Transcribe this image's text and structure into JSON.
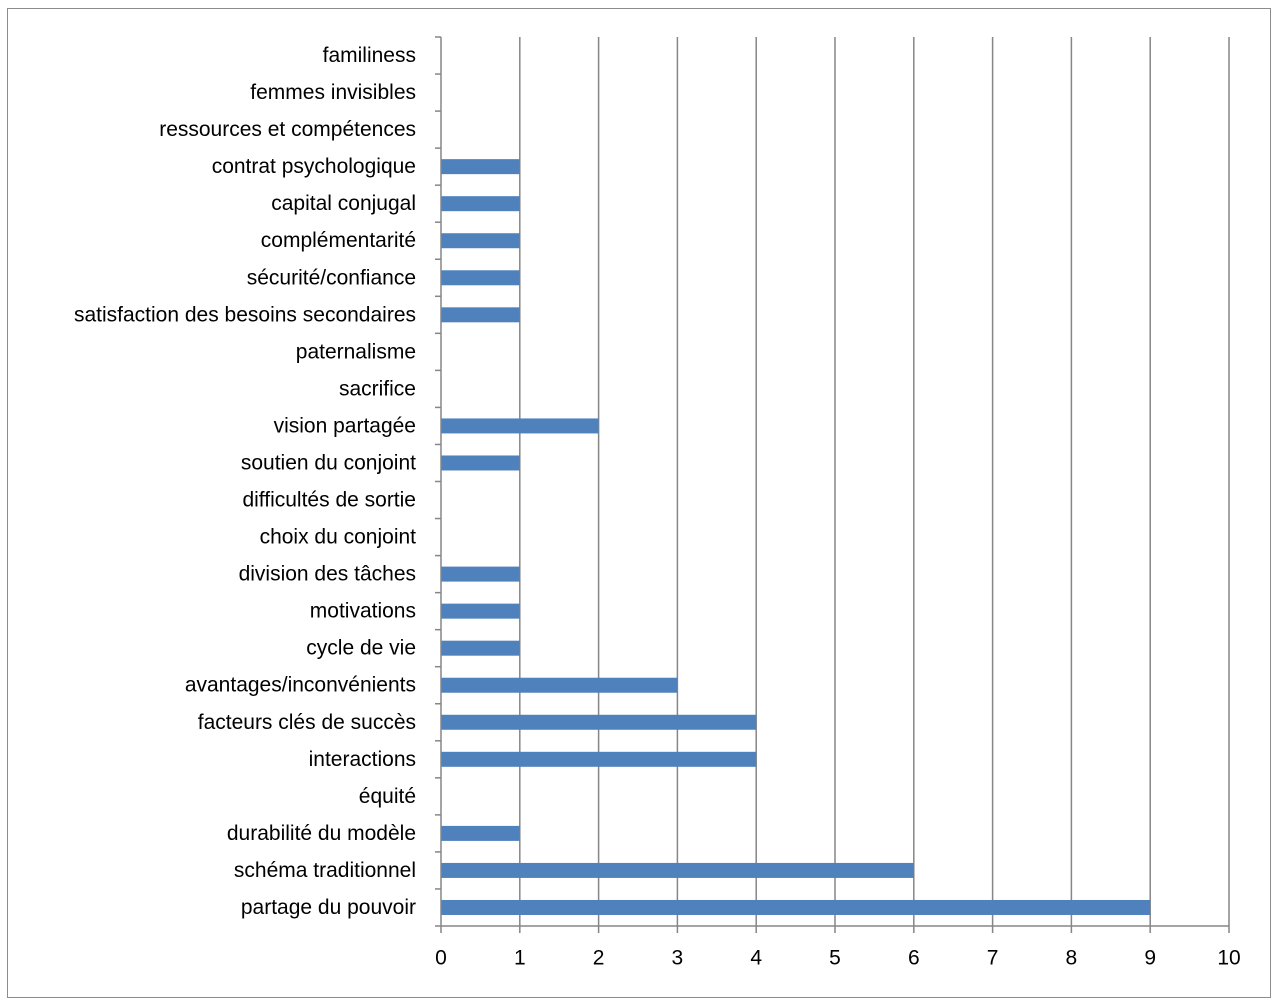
{
  "chart_data": {
    "type": "bar",
    "orientation": "horizontal",
    "categories": [
      "familiness",
      "femmes invisibles",
      "ressources et compétences",
      "contrat psychologique",
      "capital conjugal",
      "complémentarité",
      "sécurité/confiance",
      "satisfaction des besoins secondaires",
      "paternalisme",
      "sacrifice",
      "vision partagée",
      "soutien du conjoint",
      "difficultés de sortie",
      "choix du conjoint",
      "division des tâches",
      "motivations",
      "cycle de vie",
      "avantages/inconvénients",
      "facteurs clés de succès",
      "interactions",
      "équité",
      "durabilité du modèle",
      "schéma traditionnel",
      "partage du pouvoir"
    ],
    "values": [
      0,
      0,
      0,
      1,
      1,
      1,
      1,
      1,
      0,
      0,
      2,
      1,
      0,
      0,
      1,
      1,
      1,
      3,
      4,
      4,
      0,
      1,
      6,
      9
    ],
    "xlim": [
      0,
      10
    ],
    "x_ticks": [
      "0",
      "1",
      "2",
      "3",
      "4",
      "5",
      "6",
      "7",
      "8",
      "9",
      "10"
    ],
    "title": "",
    "xlabel": "",
    "ylabel": "",
    "grid": "vertical major gridlines",
    "legend": "none",
    "bar_color": "#4f81bd",
    "gridline_color": "#868686"
  }
}
